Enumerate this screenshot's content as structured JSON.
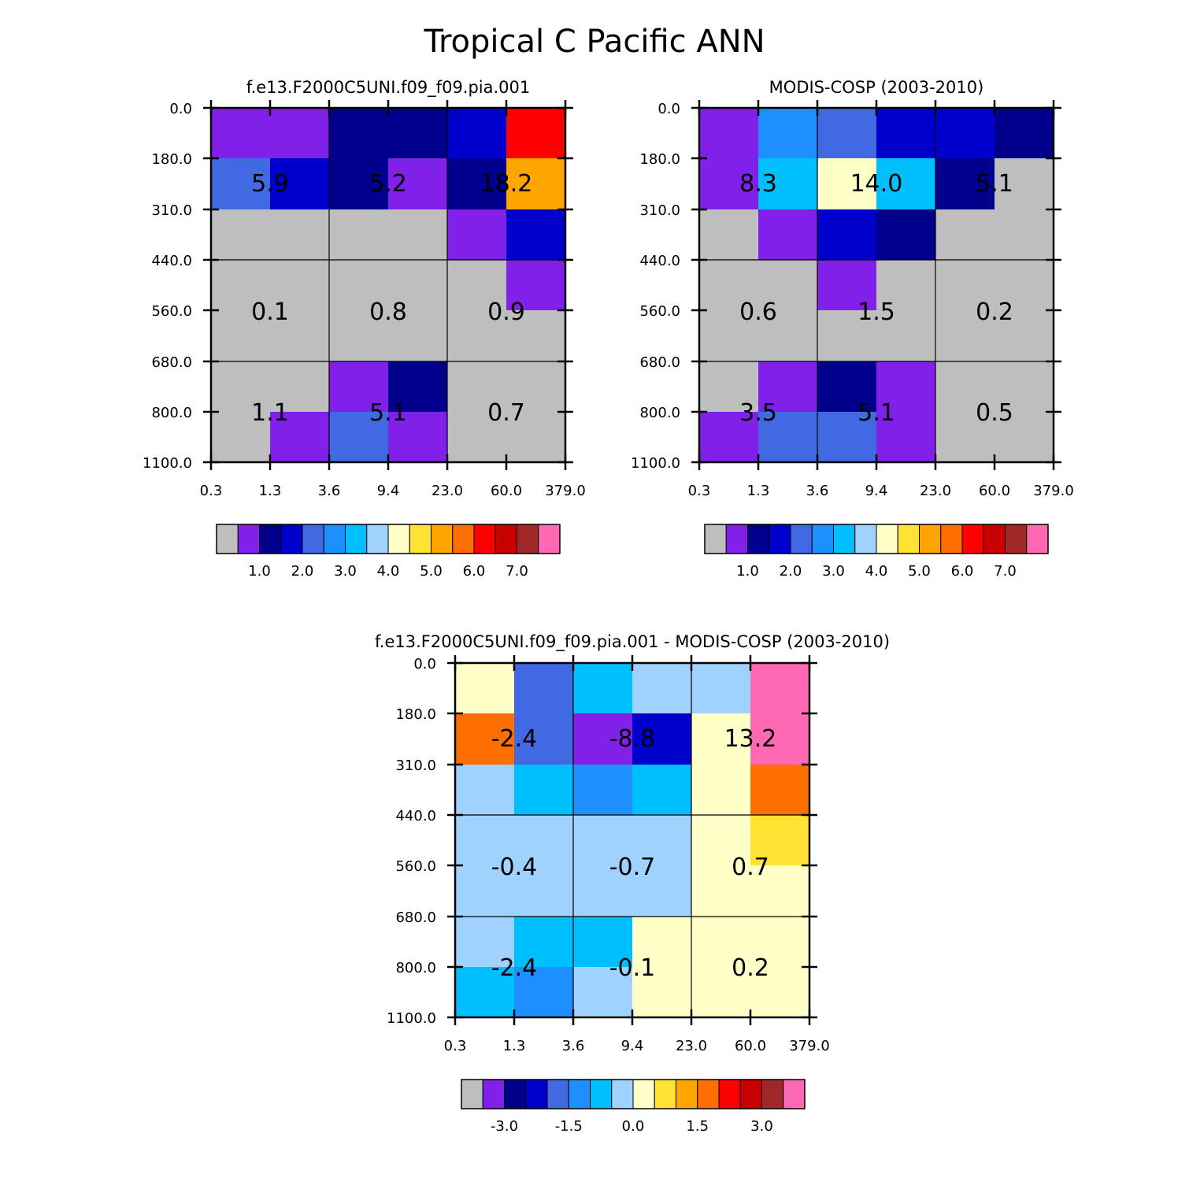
{
  "chart_data": {
    "title": "Tropical C Pacific ANN",
    "panels": [
      {
        "type": "heatmap",
        "title": "f.e13.F2000C5UNI.f09_f09.pia.001",
        "x_ticks": [
          "0.3",
          "1.3",
          "3.6",
          "9.4",
          "23.0",
          "60.0",
          "379.0"
        ],
        "y_ticks": [
          "0.0",
          "180.0",
          "310.0",
          "440.0",
          "560.0",
          "680.0",
          "800.0",
          "1100.0"
        ],
        "cells": [
          [
            1,
            1,
            2,
            2,
            3,
            12
          ],
          [
            4,
            3,
            2,
            1,
            2,
            10
          ],
          [
            0,
            0,
            0,
            0,
            1,
            3
          ],
          [
            0,
            0,
            0,
            0,
            0,
            1
          ],
          [
            0,
            0,
            0,
            0,
            0,
            0
          ],
          [
            0,
            0,
            1,
            2,
            0,
            0
          ],
          [
            0,
            1,
            4,
            1,
            0,
            0
          ]
        ],
        "group_labels": [
          "5.9",
          "5.2",
          "18.2",
          "0.1",
          "0.8",
          "0.9",
          "1.1",
          "5.1",
          "0.7"
        ],
        "colorbar": {
          "labels": [
            "1.0",
            "2.0",
            "3.0",
            "4.0",
            "5.0",
            "6.0",
            "7.0"
          ]
        }
      },
      {
        "type": "heatmap",
        "title": "MODIS-COSP (2003-2010)",
        "x_ticks": [
          "0.3",
          "1.3",
          "3.6",
          "9.4",
          "23.0",
          "60.0",
          "379.0"
        ],
        "y_ticks": [
          "0.0",
          "180.0",
          "310.0",
          "440.0",
          "560.0",
          "680.0",
          "800.0",
          "1100.0"
        ],
        "cells": [
          [
            1,
            5,
            4,
            3,
            3,
            2
          ],
          [
            1,
            6,
            8,
            6,
            2,
            0
          ],
          [
            0,
            1,
            3,
            2,
            0,
            0
          ],
          [
            0,
            0,
            1,
            0,
            0,
            0
          ],
          [
            0,
            0,
            0,
            0,
            0,
            0
          ],
          [
            0,
            1,
            2,
            1,
            0,
            0
          ],
          [
            1,
            4,
            4,
            1,
            0,
            0
          ]
        ],
        "group_labels": [
          "8.3",
          "14.0",
          "5.1",
          "0.6",
          "1.5",
          "0.2",
          "3.5",
          "5.1",
          "0.5"
        ],
        "colorbar": {
          "labels": [
            "1.0",
            "2.0",
            "3.0",
            "4.0",
            "5.0",
            "6.0",
            "7.0"
          ]
        }
      },
      {
        "type": "heatmap",
        "title": "f.e13.F2000C5UNI.f09_f09.pia.001 - MODIS-COSP (2003-2010)",
        "x_ticks": [
          "0.3",
          "1.3",
          "3.6",
          "9.4",
          "23.0",
          "60.0",
          "379.0"
        ],
        "y_ticks": [
          "0.0",
          "180.0",
          "310.0",
          "440.0",
          "560.0",
          "680.0",
          "800.0",
          "1100.0"
        ],
        "cells": [
          [
            8,
            4,
            6,
            7,
            7,
            15
          ],
          [
            11,
            4,
            1,
            3,
            8,
            15
          ],
          [
            7,
            6,
            5,
            6,
            8,
            11
          ],
          [
            7,
            7,
            7,
            7,
            8,
            9
          ],
          [
            7,
            7,
            7,
            7,
            8,
            8
          ],
          [
            7,
            6,
            6,
            8,
            8,
            8
          ],
          [
            6,
            5,
            7,
            8,
            8,
            8
          ]
        ],
        "group_labels": [
          "-2.4",
          "-8.8",
          "13.2",
          "-0.4",
          "-0.7",
          "0.7",
          "-2.4",
          "-0.1",
          "0.2"
        ],
        "colorbar": {
          "labels": [
            "-3.0",
            "-1.5",
            "0.0",
            "1.5",
            "3.0"
          ]
        }
      }
    ],
    "palette": [
      "#bebebe",
      "#8020e8",
      "#00008c",
      "#0000cd",
      "#4169e1",
      "#1e8fff",
      "#00bfff",
      "#a0d2ff",
      "#ffffc8",
      "#ffe232",
      "#ffa500",
      "#ff6e00",
      "#ff0000",
      "#c80000",
      "#a02828",
      "#ff69b4"
    ]
  }
}
